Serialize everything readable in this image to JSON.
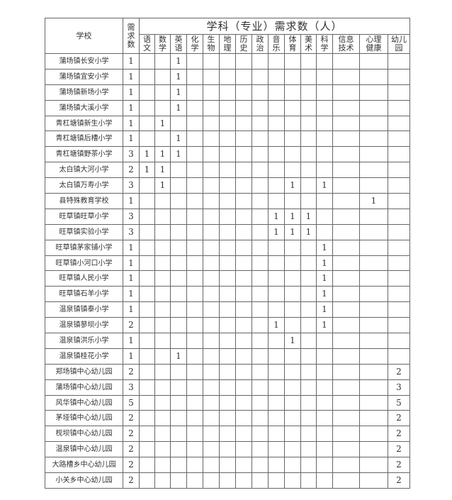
{
  "header": {
    "school": "学校",
    "demand": "需求数",
    "subjects_title": "学科（专业）需求数（人）",
    "subjects": [
      "语文",
      "数学",
      "英语",
      "化学",
      "生物",
      "地理",
      "历史",
      "政治",
      "音乐",
      "体育",
      "美术",
      "科学",
      "信息技术",
      "心理健康",
      "幼儿园"
    ]
  },
  "rows": [
    {
      "school": "蒲场镇长安小学",
      "total": "1",
      "cells": [
        "",
        "",
        "1",
        "",
        "",
        "",
        "",
        "",
        "",
        "",
        "",
        "",
        "",
        "",
        ""
      ]
    },
    {
      "school": "蒲场镇宜安小学",
      "total": "1",
      "cells": [
        "",
        "",
        "1",
        "",
        "",
        "",
        "",
        "",
        "",
        "",
        "",
        "",
        "",
        "",
        ""
      ]
    },
    {
      "school": "蒲场镇新场小学",
      "total": "1",
      "cells": [
        "",
        "",
        "1",
        "",
        "",
        "",
        "",
        "",
        "",
        "",
        "",
        "",
        "",
        "",
        ""
      ]
    },
    {
      "school": "蒲场镇大溪小学",
      "total": "1",
      "cells": [
        "",
        "",
        "1",
        "",
        "",
        "",
        "",
        "",
        "",
        "",
        "",
        "",
        "",
        "",
        ""
      ]
    },
    {
      "school": "青杠塘镇新生小学",
      "total": "1",
      "cells": [
        "",
        "1",
        "",
        "",
        "",
        "",
        "",
        "",
        "",
        "",
        "",
        "",
        "",
        "",
        ""
      ]
    },
    {
      "school": "青杠塘镇后槽小学",
      "total": "1",
      "cells": [
        "",
        "",
        "1",
        "",
        "",
        "",
        "",
        "",
        "",
        "",
        "",
        "",
        "",
        "",
        ""
      ]
    },
    {
      "school": "青杠塘镇野茶小学",
      "total": "3",
      "cells": [
        "1",
        "1",
        "1",
        "",
        "",
        "",
        "",
        "",
        "",
        "",
        "",
        "",
        "",
        "",
        ""
      ]
    },
    {
      "school": "太白镇大河小学",
      "total": "2",
      "cells": [
        "1",
        "1",
        "",
        "",
        "",
        "",
        "",
        "",
        "",
        "",
        "",
        "",
        "",
        "",
        ""
      ]
    },
    {
      "school": "太白镇万寿小学",
      "total": "3",
      "cells": [
        "",
        "1",
        "",
        "",
        "",
        "",
        "",
        "",
        "",
        "1",
        "",
        "1",
        "",
        "",
        ""
      ]
    },
    {
      "school": "县特殊教育学校",
      "total": "1",
      "cells": [
        "",
        "",
        "",
        "",
        "",
        "",
        "",
        "",
        "",
        "",
        "",
        "",
        "",
        "1",
        ""
      ]
    },
    {
      "school": "旺草镇旺草小学",
      "total": "3",
      "cells": [
        "",
        "",
        "",
        "",
        "",
        "",
        "",
        "",
        "1",
        "1",
        "1",
        "",
        "",
        "",
        ""
      ]
    },
    {
      "school": "旺草镇实验小学",
      "total": "3",
      "cells": [
        "",
        "",
        "",
        "",
        "",
        "",
        "",
        "",
        "1",
        "1",
        "1",
        "",
        "",
        "",
        ""
      ]
    },
    {
      "school": "旺草镇茅家铺小学",
      "total": "1",
      "cells": [
        "",
        "",
        "",
        "",
        "",
        "",
        "",
        "",
        "",
        "",
        "",
        "1",
        "",
        "",
        ""
      ]
    },
    {
      "school": "旺草镇小河口小学",
      "total": "1",
      "cells": [
        "",
        "",
        "",
        "",
        "",
        "",
        "",
        "",
        "",
        "",
        "",
        "1",
        "",
        "",
        ""
      ]
    },
    {
      "school": "旺草镇人民小学",
      "total": "1",
      "cells": [
        "",
        "",
        "",
        "",
        "",
        "",
        "",
        "",
        "",
        "",
        "",
        "1",
        "",
        "",
        ""
      ]
    },
    {
      "school": "旺草镇石羊小学",
      "total": "1",
      "cells": [
        "",
        "",
        "",
        "",
        "",
        "",
        "",
        "",
        "",
        "",
        "",
        "1",
        "",
        "",
        ""
      ]
    },
    {
      "school": "温泉镇镇泰小学",
      "total": "1",
      "cells": [
        "",
        "",
        "",
        "",
        "",
        "",
        "",
        "",
        "",
        "",
        "",
        "1",
        "",
        "",
        ""
      ]
    },
    {
      "school": "温泉镇蓼坝小学",
      "total": "2",
      "cells": [
        "",
        "",
        "",
        "",
        "",
        "",
        "",
        "",
        "1",
        "",
        "",
        "1",
        "",
        "",
        ""
      ]
    },
    {
      "school": "温泉镇洪乐小学",
      "total": "1",
      "cells": [
        "",
        "",
        "",
        "",
        "",
        "",
        "",
        "",
        "",
        "1",
        "",
        "",
        "",
        "",
        ""
      ]
    },
    {
      "school": "温泉镇桂花小学",
      "total": "1",
      "cells": [
        "",
        "",
        "1",
        "",
        "",
        "",
        "",
        "",
        "",
        "",
        "",
        "",
        "",
        "",
        ""
      ]
    },
    {
      "school": "郑场镇中心幼儿园",
      "total": "2",
      "cells": [
        "",
        "",
        "",
        "",
        "",
        "",
        "",
        "",
        "",
        "",
        "",
        "",
        "",
        "",
        "2"
      ]
    },
    {
      "school": "蒲场镇中心幼儿园",
      "total": "3",
      "cells": [
        "",
        "",
        "",
        "",
        "",
        "",
        "",
        "",
        "",
        "",
        "",
        "",
        "",
        "",
        "3"
      ]
    },
    {
      "school": "风华镇中心幼儿园",
      "total": "5",
      "cells": [
        "",
        "",
        "",
        "",
        "",
        "",
        "",
        "",
        "",
        "",
        "",
        "",
        "",
        "",
        "5"
      ]
    },
    {
      "school": "茅垭镇中心幼儿园",
      "total": "2",
      "cells": [
        "",
        "",
        "",
        "",
        "",
        "",
        "",
        "",
        "",
        "",
        "",
        "",
        "",
        "",
        "2"
      ]
    },
    {
      "school": "枧坝镇中心幼儿园",
      "total": "2",
      "cells": [
        "",
        "",
        "",
        "",
        "",
        "",
        "",
        "",
        "",
        "",
        "",
        "",
        "",
        "",
        "2"
      ]
    },
    {
      "school": "温泉镇中心幼儿园",
      "total": "2",
      "cells": [
        "",
        "",
        "",
        "",
        "",
        "",
        "",
        "",
        "",
        "",
        "",
        "",
        "",
        "",
        "2"
      ]
    },
    {
      "school": "大路槽乡中心幼儿园",
      "total": "2",
      "cells": [
        "",
        "",
        "",
        "",
        "",
        "",
        "",
        "",
        "",
        "",
        "",
        "",
        "",
        "",
        "2"
      ]
    },
    {
      "school": "小关乡中心幼儿园",
      "total": "2",
      "cells": [
        "",
        "",
        "",
        "",
        "",
        "",
        "",
        "",
        "",
        "",
        "",
        "",
        "",
        "",
        "2"
      ]
    }
  ]
}
